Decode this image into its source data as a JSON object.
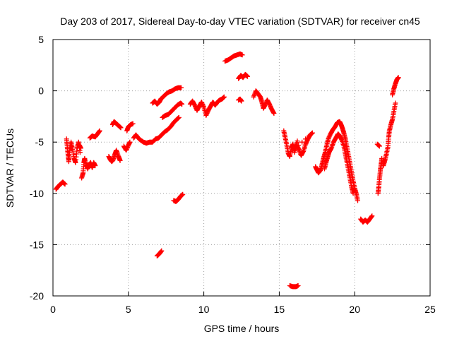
{
  "chart_data": {
    "type": "scatter",
    "title": "Day 203 of 2017, Sidereal Day-to-day VTEC variation (SDTVAR) for receiver cn45",
    "xlabel": "GPS time / hours",
    "ylabel": "SDTVAR / TECUs",
    "xlim": [
      0,
      25
    ],
    "ylim": [
      -20,
      5
    ],
    "xticks": [
      0,
      5,
      10,
      15,
      20,
      25
    ],
    "yticks": [
      -20,
      -15,
      -10,
      -5,
      0,
      5
    ],
    "grid": true,
    "marker": "+",
    "color": "#ff0000",
    "segments": [
      [
        [
          0.2,
          -9.6
        ],
        [
          0.35,
          -9.3
        ],
        [
          0.5,
          -9.1
        ],
        [
          0.65,
          -8.9
        ],
        [
          0.8,
          -9.1
        ]
      ],
      [
        [
          0.9,
          -4.7
        ],
        [
          0.95,
          -5.5
        ],
        [
          1.0,
          -6.2
        ],
        [
          1.05,
          -6.9
        ],
        [
          1.1,
          -5.8
        ],
        [
          1.2,
          -5.0
        ],
        [
          1.3,
          -5.7
        ],
        [
          1.4,
          -6.6
        ],
        [
          1.5,
          -7.0
        ],
        [
          1.6,
          -5.6
        ],
        [
          1.7,
          -5.0
        ],
        [
          1.8,
          -6.0
        ]
      ],
      [
        [
          1.75,
          -5.3
        ],
        [
          1.85,
          -5.6
        ]
      ],
      [
        [
          1.9,
          -8.5
        ],
        [
          2.0,
          -8.0
        ],
        [
          2.05,
          -7.0
        ],
        [
          2.1,
          -6.6
        ],
        [
          2.2,
          -7.2
        ],
        [
          2.3,
          -7.6
        ],
        [
          2.4,
          -7.2
        ],
        [
          2.5,
          -7.0
        ],
        [
          2.6,
          -7.5
        ],
        [
          2.7,
          -7.0
        ],
        [
          2.8,
          -7.3
        ]
      ],
      [
        [
          2.45,
          -4.6
        ],
        [
          2.6,
          -4.4
        ],
        [
          2.8,
          -4.5
        ],
        [
          2.95,
          -4.2
        ],
        [
          3.1,
          -3.9
        ]
      ],
      [
        [
          3.7,
          -6.4
        ],
        [
          3.8,
          -6.7
        ],
        [
          3.9,
          -6.9
        ],
        [
          4.0,
          -6.7
        ],
        [
          4.1,
          -6.2
        ],
        [
          4.2,
          -5.8
        ],
        [
          4.35,
          -6.4
        ],
        [
          4.45,
          -6.8
        ]
      ],
      [
        [
          3.95,
          -3.3
        ],
        [
          4.05,
          -3.0
        ],
        [
          4.2,
          -3.2
        ],
        [
          4.35,
          -3.4
        ],
        [
          4.5,
          -3.6
        ]
      ],
      [
        [
          4.7,
          -5.4
        ],
        [
          4.85,
          -5.8
        ],
        [
          5.0,
          -5.3
        ],
        [
          5.1,
          -5.0
        ]
      ],
      [
        [
          4.9,
          -3.9
        ],
        [
          5.0,
          -3.5
        ],
        [
          5.15,
          -3.3
        ],
        [
          5.3,
          -3.2
        ]
      ],
      [
        [
          5.35,
          -4.6
        ],
        [
          5.5,
          -4.3
        ],
        [
          5.65,
          -4.6
        ],
        [
          5.8,
          -4.8
        ],
        [
          6.0,
          -5.0
        ],
        [
          6.2,
          -5.1
        ],
        [
          6.4,
          -5.0
        ],
        [
          6.6,
          -5.0
        ],
        [
          6.8,
          -4.7
        ],
        [
          7.0,
          -4.6
        ],
        [
          7.2,
          -4.3
        ],
        [
          7.4,
          -4.0
        ],
        [
          7.6,
          -3.8
        ],
        [
          7.8,
          -3.5
        ],
        [
          8.0,
          -3.1
        ],
        [
          8.2,
          -2.8
        ],
        [
          8.35,
          -2.6
        ]
      ],
      [
        [
          6.6,
          -1.2
        ],
        [
          6.75,
          -1.0
        ],
        [
          6.9,
          -1.3
        ],
        [
          7.05,
          -1.1
        ],
        [
          7.15,
          -0.8
        ],
        [
          7.3,
          -0.6
        ],
        [
          7.5,
          -0.3
        ],
        [
          7.7,
          -0.1
        ],
        [
          7.9,
          0.0
        ],
        [
          8.1,
          0.2
        ],
        [
          8.3,
          0.3
        ],
        [
          8.5,
          0.3
        ]
      ],
      [
        [
          7.25,
          -2.6
        ],
        [
          7.45,
          -2.4
        ],
        [
          7.65,
          -2.3
        ],
        [
          7.85,
          -2.0
        ],
        [
          8.05,
          -1.7
        ],
        [
          8.25,
          -1.4
        ],
        [
          8.45,
          -1.2
        ],
        [
          8.55,
          -1.3
        ]
      ],
      [
        [
          6.9,
          -16.1
        ],
        [
          7.05,
          -15.9
        ],
        [
          7.2,
          -15.6
        ]
      ],
      [
        [
          8.0,
          -10.7
        ],
        [
          8.15,
          -10.8
        ],
        [
          8.3,
          -10.6
        ],
        [
          8.45,
          -10.3
        ],
        [
          8.6,
          -10.1
        ]
      ],
      [
        [
          9.1,
          -1.3
        ],
        [
          9.25,
          -1.0
        ],
        [
          9.4,
          -1.4
        ],
        [
          9.55,
          -1.9
        ],
        [
          9.7,
          -1.5
        ],
        [
          9.85,
          -1.1
        ],
        [
          10.0,
          -1.6
        ],
        [
          10.15,
          -2.4
        ],
        [
          10.3,
          -1.9
        ],
        [
          10.45,
          -1.5
        ],
        [
          10.6,
          -1.1
        ],
        [
          10.75,
          -1.4
        ],
        [
          10.9,
          -1.1
        ],
        [
          11.05,
          -0.9
        ],
        [
          11.2,
          -0.8
        ],
        [
          11.35,
          -0.6
        ]
      ],
      [
        [
          11.4,
          2.9
        ],
        [
          11.6,
          3.0
        ],
        [
          11.8,
          3.2
        ],
        [
          12.0,
          3.4
        ],
        [
          12.2,
          3.5
        ],
        [
          12.4,
          3.6
        ],
        [
          12.55,
          3.5
        ]
      ],
      [
        [
          12.3,
          1.2
        ],
        [
          12.45,
          1.5
        ],
        [
          12.6,
          1.3
        ],
        [
          12.75,
          1.6
        ],
        [
          12.9,
          1.4
        ]
      ],
      [
        [
          12.3,
          -0.9
        ],
        [
          12.4,
          -0.8
        ],
        [
          12.5,
          -1.0
        ]
      ],
      [
        [
          13.3,
          -0.6
        ],
        [
          13.45,
          0.0
        ],
        [
          13.6,
          -0.3
        ],
        [
          13.75,
          -0.6
        ],
        [
          13.85,
          -1.1
        ],
        [
          13.95,
          -1.7
        ],
        [
          14.05,
          -1.4
        ],
        [
          14.2,
          -0.9
        ],
        [
          14.35,
          -1.3
        ],
        [
          14.5,
          -1.8
        ],
        [
          14.65,
          -2.2
        ]
      ],
      [
        [
          15.3,
          -3.9
        ],
        [
          15.4,
          -4.6
        ],
        [
          15.5,
          -5.3
        ],
        [
          15.6,
          -6.1
        ],
        [
          15.7,
          -6.4
        ],
        [
          15.8,
          -5.6
        ],
        [
          15.9,
          -5.2
        ],
        [
          16.0,
          -6.0
        ],
        [
          16.15,
          -5.3
        ],
        [
          16.3,
          -5.7
        ],
        [
          16.45,
          -6.3
        ],
        [
          16.6,
          -5.9
        ],
        [
          16.75,
          -5.2
        ],
        [
          16.9,
          -4.7
        ],
        [
          17.05,
          -4.3
        ],
        [
          17.2,
          -4.1
        ],
        [
          16.05,
          -5.6
        ],
        [
          16.2,
          -4.9
        ]
      ],
      [
        [
          15.7,
          -19.0
        ],
        [
          15.9,
          -19.1
        ],
        [
          16.1,
          -19.1
        ],
        [
          16.25,
          -19.0
        ]
      ],
      [
        [
          17.4,
          -7.4
        ],
        [
          17.5,
          -7.7
        ],
        [
          17.6,
          -8.0
        ],
        [
          17.75,
          -7.7
        ],
        [
          17.85,
          -7.1
        ],
        [
          17.95,
          -6.5
        ],
        [
          18.05,
          -6.0
        ],
        [
          18.15,
          -5.3
        ],
        [
          18.25,
          -4.7
        ],
        [
          18.4,
          -4.2
        ],
        [
          18.55,
          -3.8
        ],
        [
          18.7,
          -3.5
        ],
        [
          18.85,
          -3.1
        ],
        [
          19.0,
          -3.0
        ],
        [
          19.1,
          -3.3
        ],
        [
          19.2,
          -3.7
        ],
        [
          19.3,
          -4.2
        ],
        [
          19.4,
          -4.8
        ],
        [
          19.5,
          -5.6
        ],
        [
          19.6,
          -6.4
        ],
        [
          19.7,
          -7.2
        ],
        [
          19.8,
          -8.0
        ],
        [
          19.9,
          -8.8
        ],
        [
          20.0,
          -9.5
        ],
        [
          20.1,
          -10.0
        ],
        [
          20.2,
          -10.7
        ]
      ],
      [
        [
          18.0,
          -7.6
        ],
        [
          18.1,
          -7.0
        ],
        [
          18.2,
          -6.5
        ],
        [
          18.3,
          -6.0
        ],
        [
          18.45,
          -5.6
        ],
        [
          18.6,
          -5.0
        ],
        [
          18.75,
          -4.6
        ],
        [
          18.9,
          -4.2
        ],
        [
          19.0,
          -4.4
        ],
        [
          19.15,
          -4.8
        ],
        [
          19.3,
          -5.5
        ],
        [
          19.4,
          -6.3
        ],
        [
          19.5,
          -7.0
        ],
        [
          19.6,
          -7.8
        ],
        [
          19.7,
          -8.6
        ],
        [
          19.8,
          -9.4
        ],
        [
          19.9,
          -10.0
        ]
      ],
      [
        [
          20.4,
          -12.5
        ],
        [
          20.55,
          -12.8
        ],
        [
          20.7,
          -12.6
        ],
        [
          20.85,
          -12.8
        ],
        [
          21.0,
          -12.5
        ],
        [
          21.15,
          -12.2
        ]
      ],
      [
        [
          21.5,
          -5.2
        ],
        [
          21.65,
          -5.4
        ]
      ],
      [
        [
          21.55,
          -10.0
        ],
        [
          21.6,
          -9.3
        ],
        [
          21.65,
          -8.5
        ],
        [
          21.7,
          -7.8
        ],
        [
          21.75,
          -7.2
        ],
        [
          21.8,
          -6.6
        ]
      ],
      [
        [
          21.9,
          -7.3
        ],
        [
          22.0,
          -6.8
        ],
        [
          22.1,
          -6.2
        ],
        [
          22.2,
          -5.5
        ],
        [
          22.25,
          -4.6
        ],
        [
          22.3,
          -3.9
        ],
        [
          22.4,
          -3.3
        ],
        [
          22.5,
          -2.8
        ],
        [
          22.6,
          -2.0
        ],
        [
          22.7,
          -1.2
        ]
      ],
      [
        [
          22.5,
          -0.4
        ],
        [
          22.6,
          0.2
        ],
        [
          22.7,
          0.7
        ],
        [
          22.8,
          1.1
        ],
        [
          22.9,
          1.3
        ]
      ]
    ]
  }
}
